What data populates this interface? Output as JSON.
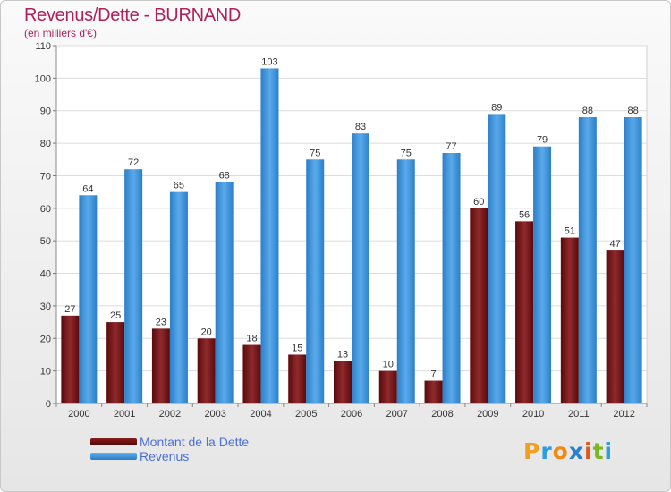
{
  "title": "Revenus/Dette - BURNAND",
  "subtitle": "(en milliers d'€)",
  "colors": {
    "dette": "#7a1a1c",
    "revenus": "#3a92dc",
    "title": "#b0205a"
  },
  "logo": {
    "text": "Proxiti",
    "letters": [
      "P",
      "r",
      "o",
      "x",
      "i",
      "t",
      "i"
    ]
  },
  "legend": [
    {
      "label": "Montant de la Dette",
      "color": "#6e0e10"
    },
    {
      "label": "Revenus",
      "color": "#3a92dc"
    }
  ],
  "chart_data": {
    "type": "bar",
    "title": "Revenus/Dette - BURNAND",
    "subtitle": "(en milliers d'€)",
    "categories": [
      "2000",
      "2001",
      "2002",
      "2003",
      "2004",
      "2005",
      "2006",
      "2007",
      "2008",
      "2009",
      "2010",
      "2011",
      "2012"
    ],
    "series": [
      {
        "name": "Montant de la Dette",
        "values": [
          27,
          25,
          23,
          20,
          18,
          15,
          13,
          10,
          7,
          60,
          56,
          51,
          47
        ]
      },
      {
        "name": "Revenus",
        "values": [
          64,
          72,
          65,
          68,
          103,
          75,
          83,
          75,
          77,
          89,
          79,
          88,
          88
        ]
      }
    ],
    "ylim": [
      0,
      110
    ],
    "yticks": [
      0,
      10,
      20,
      30,
      40,
      50,
      60,
      70,
      80,
      90,
      100,
      110
    ],
    "grid": true,
    "legend_position": "bottom-left"
  }
}
